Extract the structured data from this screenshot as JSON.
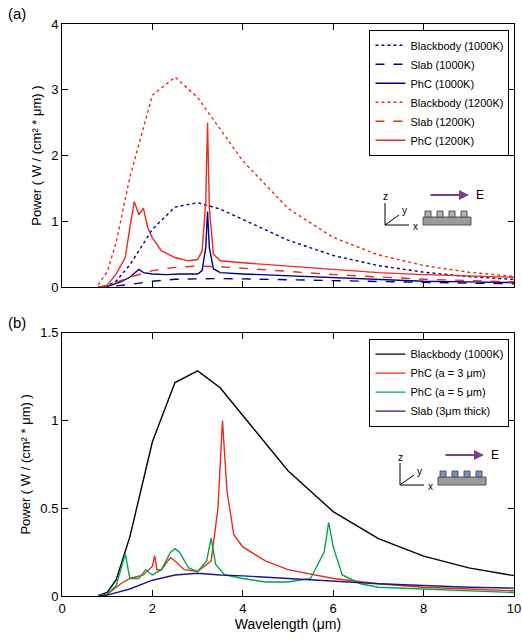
{
  "chart_data": [
    {
      "type": "line",
      "title": "(a)",
      "y_label": "Power ( W / (cm² * μm) )",
      "xlim": [
        0,
        10
      ],
      "xticks": [
        0,
        2,
        4,
        6,
        8,
        10
      ],
      "ylim": [
        0,
        4
      ],
      "yticks": [
        0,
        1,
        2,
        3,
        4
      ],
      "tick_labels": "y",
      "grid": false,
      "legend": "upper right",
      "annotations": [
        "z",
        "y",
        "x",
        "E"
      ],
      "series": [
        {
          "name": "Blackbody (1000K)",
          "color": "#00008b",
          "line_style": "dotted",
          "x": [
            0.8,
            1,
            1.2,
            1.5,
            2,
            2.5,
            3,
            3.5,
            4,
            5,
            6,
            7,
            8,
            9,
            10
          ],
          "values": [
            0.002,
            0.021,
            0.093,
            0.336,
            0.879,
            1.217,
            1.283,
            1.187,
            1.029,
            0.714,
            0.481,
            0.327,
            0.227,
            0.16,
            0.116
          ]
        },
        {
          "name": "Slab (1000K)",
          "color": "#00008b",
          "line_style": "dashed",
          "x": [
            0.8,
            1,
            1.5,
            2,
            2.5,
            3,
            3.5,
            4,
            5,
            6,
            7,
            8,
            9,
            10
          ],
          "values": [
            0,
            0.005,
            0.04,
            0.09,
            0.12,
            0.13,
            0.13,
            0.125,
            0.11,
            0.095,
            0.08,
            0.07,
            0.06,
            0.05
          ]
        },
        {
          "name": "PhC (1000K)",
          "color": "#00008b",
          "line_style": "solid",
          "x": [
            0.8,
            1,
            1.3,
            1.5,
            1.7,
            1.8,
            2,
            2.3,
            2.6,
            3,
            3.1,
            3.18,
            3.22,
            3.26,
            3.35,
            3.5,
            4,
            5,
            6,
            7,
            8,
            9,
            10
          ],
          "values": [
            0,
            0.01,
            0.08,
            0.15,
            0.27,
            0.22,
            0.2,
            0.19,
            0.2,
            0.2,
            0.25,
            0.6,
            1.15,
            0.6,
            0.28,
            0.22,
            0.2,
            0.17,
            0.14,
            0.11,
            0.09,
            0.08,
            0.07
          ]
        },
        {
          "name": "Blackbody (1200K)",
          "color": "#ee2a1b",
          "line_style": "dotted",
          "x": [
            0.8,
            1,
            1.2,
            1.5,
            2,
            2.5,
            3,
            3.5,
            4,
            5,
            6,
            7,
            8,
            9,
            10
          ],
          "values": [
            0.035,
            0.232,
            0.687,
            1.665,
            2.919,
            3.193,
            2.884,
            2.395,
            1.919,
            1.197,
            0.755,
            0.49,
            0.329,
            0.227,
            0.162
          ]
        },
        {
          "name": "Slab (1200K)",
          "color": "#ee2a1b",
          "line_style": "dashed",
          "x": [
            0.8,
            1,
            1.5,
            2,
            2.5,
            3,
            3.5,
            4,
            5,
            6,
            7,
            8,
            9,
            10
          ],
          "values": [
            0,
            0.02,
            0.15,
            0.25,
            0.3,
            0.32,
            0.31,
            0.29,
            0.24,
            0.19,
            0.15,
            0.12,
            0.1,
            0.08
          ]
        },
        {
          "name": "PhC (1200K)",
          "color": "#ee2a1b",
          "line_style": "solid",
          "x": [
            0.8,
            1,
            1.2,
            1.4,
            1.5,
            1.6,
            1.7,
            1.75,
            1.8,
            1.9,
            2,
            2.2,
            2.5,
            2.8,
            3,
            3.1,
            3.18,
            3.22,
            3.26,
            3.35,
            3.5,
            4,
            5,
            6,
            7,
            8,
            9,
            10
          ],
          "values": [
            0,
            0.03,
            0.2,
            0.45,
            0.9,
            1.3,
            1.1,
            1.15,
            1.2,
            0.9,
            0.75,
            0.55,
            0.45,
            0.4,
            0.42,
            0.55,
            1.3,
            2.5,
            1.2,
            0.5,
            0.4,
            0.37,
            0.32,
            0.27,
            0.22,
            0.19,
            0.17,
            0.15
          ]
        }
      ]
    },
    {
      "type": "line",
      "title": "(b)",
      "x_label": "Wavelength (μm)",
      "y_label": "Power ( W / (cm² * μm) )",
      "xlim": [
        0,
        10
      ],
      "xticks": [
        0,
        2,
        4,
        6,
        8,
        10
      ],
      "ylim": [
        0,
        1.5
      ],
      "yticks": [
        0,
        0.5,
        1,
        1.5
      ],
      "grid": false,
      "legend": "upper right",
      "annotations": [
        "z",
        "y",
        "x",
        "E"
      ],
      "series": [
        {
          "name": "Blackbody (1000K)",
          "color": "#000000",
          "line_style": "solid",
          "x": [
            0.8,
            1,
            1.2,
            1.5,
            2,
            2.5,
            3,
            3.5,
            4,
            5,
            6,
            7,
            8,
            9,
            10
          ],
          "values": [
            0.002,
            0.021,
            0.093,
            0.336,
            0.879,
            1.217,
            1.283,
            1.187,
            1.029,
            0.714,
            0.481,
            0.327,
            0.227,
            0.16,
            0.116
          ]
        },
        {
          "name": "PhC (a = 3 μm)",
          "color": "#ee2a1b",
          "line_style": "solid",
          "x": [
            0.8,
            1,
            1.3,
            1.5,
            1.8,
            2,
            2.05,
            2.1,
            2.2,
            2.4,
            2.5,
            2.7,
            3,
            3.3,
            3.45,
            3.55,
            3.65,
            3.8,
            4,
            4.5,
            5,
            6,
            7,
            8,
            9,
            10
          ],
          "values": [
            0,
            0.01,
            0.07,
            0.1,
            0.12,
            0.17,
            0.23,
            0.15,
            0.15,
            0.22,
            0.2,
            0.15,
            0.14,
            0.2,
            0.5,
            1.0,
            0.6,
            0.35,
            0.28,
            0.2,
            0.15,
            0.1,
            0.07,
            0.05,
            0.04,
            0.03
          ]
        },
        {
          "name": "PhC (a = 5 μm)",
          "color": "#00a550",
          "line_style": "solid",
          "x": [
            0.8,
            1,
            1.2,
            1.35,
            1.4,
            1.5,
            1.7,
            1.85,
            2,
            2.2,
            2.4,
            2.5,
            2.6,
            2.8,
            3,
            3.2,
            3.3,
            3.4,
            3.6,
            4,
            4.5,
            5,
            5.5,
            5.8,
            5.9,
            6,
            6.2,
            6.6,
            7,
            8,
            9,
            10
          ],
          "values": [
            0,
            0.01,
            0.06,
            0.2,
            0.24,
            0.1,
            0.1,
            0.15,
            0.12,
            0.15,
            0.25,
            0.27,
            0.25,
            0.16,
            0.14,
            0.2,
            0.33,
            0.18,
            0.12,
            0.1,
            0.08,
            0.08,
            0.1,
            0.25,
            0.42,
            0.28,
            0.12,
            0.07,
            0.05,
            0.04,
            0.03,
            0.02
          ]
        },
        {
          "name": "Slab (3μm thick)",
          "color": "#1a1a8c",
          "line_style": "solid",
          "x": [
            0.8,
            1,
            1.5,
            2,
            2.5,
            3,
            3.5,
            4,
            5,
            6,
            7,
            8,
            9,
            10
          ],
          "values": [
            0,
            0.005,
            0.04,
            0.09,
            0.12,
            0.13,
            0.12,
            0.115,
            0.1,
            0.085,
            0.07,
            0.06,
            0.05,
            0.045
          ]
        }
      ]
    }
  ]
}
